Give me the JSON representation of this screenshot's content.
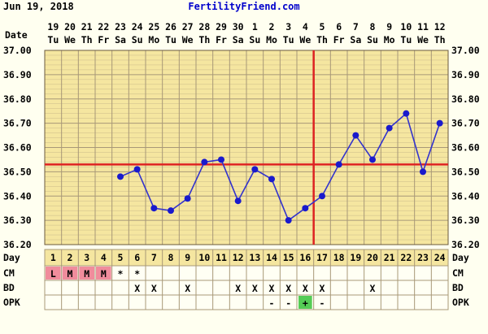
{
  "header": {
    "date": "Jun 19, 2018",
    "site": "FertilityFriend.com"
  },
  "row_labels": {
    "date": "Date",
    "day": "Day",
    "cm": "CM",
    "bd": "BD",
    "opk": "OPK"
  },
  "dates": [
    "19",
    "20",
    "21",
    "22",
    "23",
    "24",
    "25",
    "26",
    "27",
    "28",
    "29",
    "30",
    "1",
    "2",
    "3",
    "4",
    "5",
    "6",
    "7",
    "8",
    "9",
    "10",
    "11",
    "12"
  ],
  "weekdays": [
    "Tu",
    "We",
    "Th",
    "Fr",
    "Sa",
    "Su",
    "Mo",
    "Tu",
    "We",
    "Th",
    "Fr",
    "Sa",
    "Su",
    "Mo",
    "Tu",
    "We",
    "Th",
    "Fr",
    "Sa",
    "Su",
    "Mo",
    "Tu",
    "We",
    "Th"
  ],
  "cm": [
    "L",
    "M",
    "M",
    "M",
    "*",
    "*",
    "",
    "",
    "",
    "",
    "",
    "",
    "",
    "",
    "",
    "",
    "",
    "",
    "",
    "",
    "",
    "",
    "",
    ""
  ],
  "bd": [
    "",
    "",
    "",
    "",
    "",
    "X",
    "X",
    "",
    "X",
    "",
    "",
    "X",
    "X",
    "X",
    "X",
    "X",
    "X",
    "",
    "",
    "X",
    "",
    "",
    "",
    ""
  ],
  "opk": [
    "",
    "",
    "",
    "",
    "",
    "",
    "",
    "",
    "",
    "",
    "",
    "",
    "",
    "-",
    "-",
    "+",
    "-",
    "",
    "",
    "",
    "",
    "",
    "",
    ""
  ],
  "colors": {
    "background": "#fffff0",
    "grid_fill": "#f5e6a0",
    "grid_line": "#a89878",
    "line": "#3333cc",
    "dot": "#1a1acc",
    "coverline": "#dd2222",
    "menses": "#f08c9c",
    "opk_positive": "#55cc55",
    "site": "#0000cc"
  },
  "chart_data": {
    "type": "line",
    "title": "",
    "xlabel": "Day",
    "ylabel": "",
    "x": [
      1,
      2,
      3,
      4,
      5,
      6,
      7,
      8,
      9,
      10,
      11,
      12,
      13,
      14,
      15,
      16,
      17,
      18,
      19,
      20,
      21,
      22,
      23,
      24
    ],
    "series": [
      {
        "values": [
          null,
          null,
          null,
          null,
          36.48,
          36.51,
          36.35,
          36.34,
          36.39,
          36.54,
          36.55,
          36.38,
          36.51,
          36.47,
          36.3,
          36.35,
          36.4,
          36.53,
          36.65,
          36.55,
          36.68,
          36.74,
          36.5,
          36.7
        ]
      }
    ],
    "ylim": [
      36.2,
      37.0
    ],
    "y_ticks": [
      "37.00",
      "36.90",
      "36.80",
      "36.70",
      "36.60",
      "36.50",
      "36.40",
      "36.30",
      "36.20"
    ],
    "coverline": 36.53,
    "ovulation_day": 17,
    "grid": true
  }
}
